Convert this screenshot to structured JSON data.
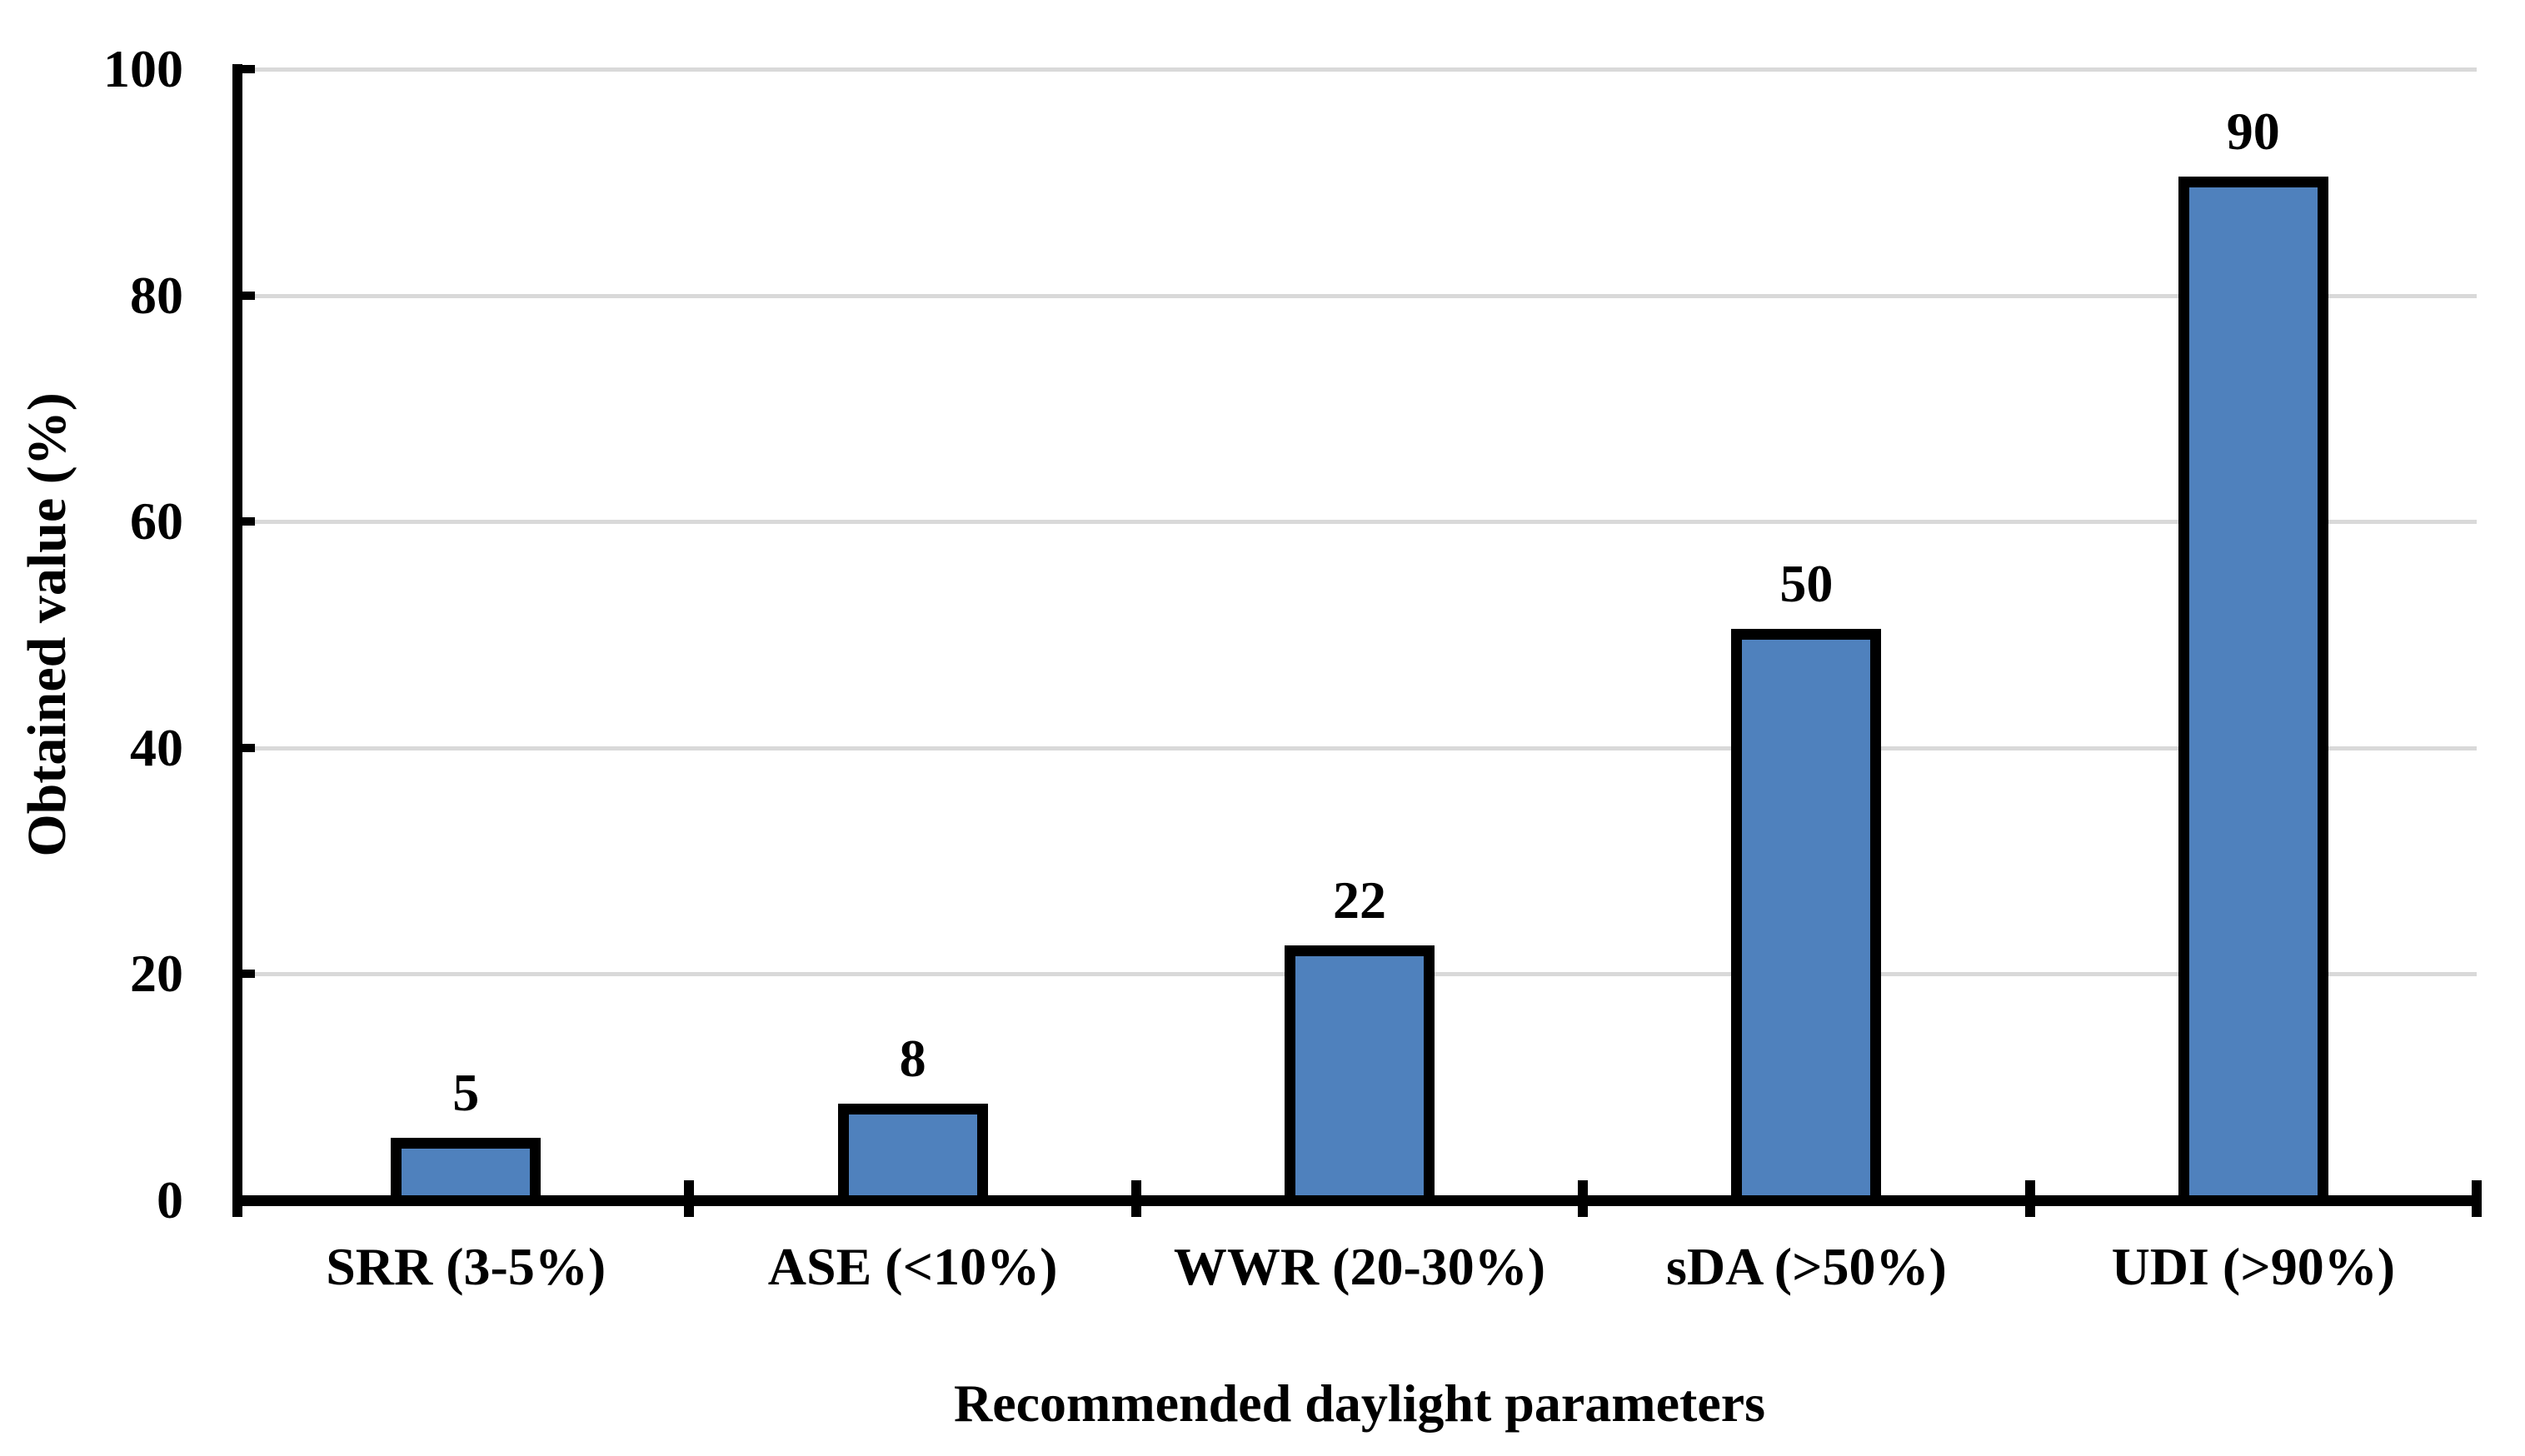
{
  "chart_data": {
    "type": "bar",
    "title": "",
    "xlabel": "Recommended daylight parameters",
    "ylabel": "Obtained value (%)",
    "categories": [
      "SRR (3-5%)",
      "ASE (<10%)",
      "WWR (20-30%)",
      "sDA (>50%)",
      "UDI (>90%)"
    ],
    "values": [
      5,
      8,
      22,
      50,
      90
    ],
    "data_labels": [
      "5",
      "8",
      "22",
      "50",
      "90"
    ],
    "y_tick_values": [
      0,
      20,
      40,
      60,
      80,
      100
    ],
    "y_tick_labels": [
      "0",
      "20",
      "40",
      "60",
      "80",
      "100"
    ],
    "ylim": [
      0,
      100
    ],
    "grid": "horizontal",
    "legend_position": "none",
    "colors": {
      "bar_fill": "#4F81BD",
      "bar_border": "#000000",
      "axis": "#000000",
      "gridline": "#D9D9D9",
      "text": "#000000"
    }
  }
}
